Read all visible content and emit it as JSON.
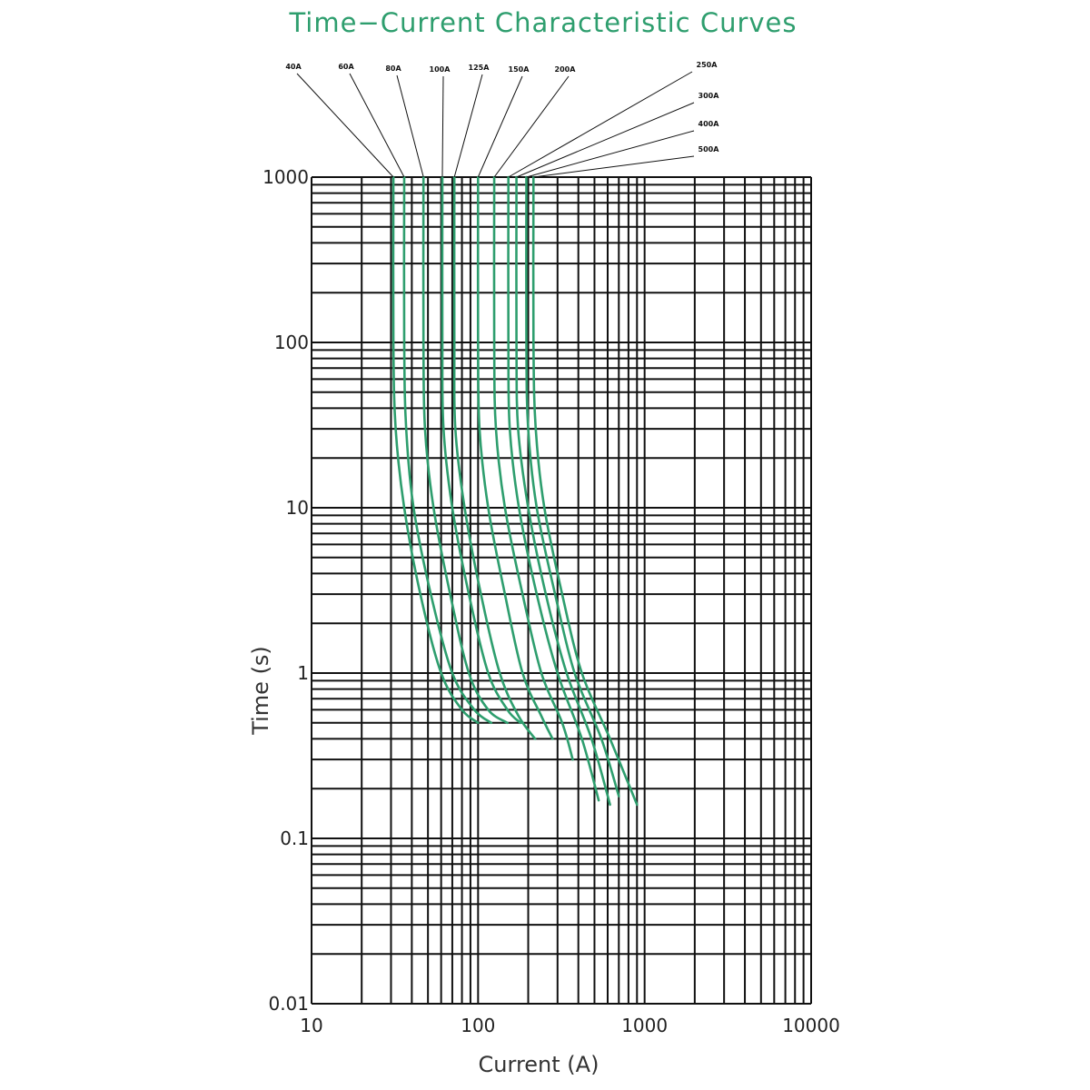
{
  "chart_data": {
    "type": "line",
    "title": "Time−Current Characteristic Curves",
    "xlabel": "Current (A)",
    "ylabel": "Time (s)",
    "x_scale": "log",
    "y_scale": "log",
    "xlim": [
      10,
      10000
    ],
    "ylim": [
      0.01,
      1000
    ],
    "grid": true,
    "x_ticks": [
      {
        "value": 10,
        "label": "10"
      },
      {
        "value": 100,
        "label": "100"
      },
      {
        "value": 1000,
        "label": "1000"
      },
      {
        "value": 10000,
        "label": "10000"
      }
    ],
    "y_ticks": [
      {
        "value": 1000,
        "label": "1000"
      },
      {
        "value": 100,
        "label": "100"
      },
      {
        "value": 10,
        "label": "10"
      },
      {
        "value": 1,
        "label": "1"
      },
      {
        "value": 0.1,
        "label": "0.1"
      },
      {
        "value": 0.01,
        "label": "0.01"
      }
    ],
    "colors": {
      "curve": "#2e9e6e",
      "title": "#2e9e6e",
      "grid": "#111111"
    },
    "series": [
      {
        "name": "40A",
        "x": [
          31,
          31,
          32,
          36,
          45,
          60,
          80,
          100
        ],
        "y": [
          1000,
          100,
          30,
          10,
          3,
          1,
          0.6,
          0.5
        ]
      },
      {
        "name": "60A",
        "x": [
          36,
          36,
          37,
          41,
          52,
          70,
          95,
          120
        ],
        "y": [
          1000,
          100,
          30,
          10,
          3,
          1,
          0.6,
          0.5
        ]
      },
      {
        "name": "80A",
        "x": [
          47,
          47,
          48,
          54,
          68,
          88,
          115,
          150
        ],
        "y": [
          1000,
          100,
          30,
          10,
          3,
          1,
          0.6,
          0.5
        ]
      },
      {
        "name": "100A",
        "x": [
          61,
          61,
          62,
          70,
          88,
          115,
          150,
          180
        ],
        "y": [
          1000,
          100,
          30,
          10,
          3,
          1,
          0.6,
          0.5
        ]
      },
      {
        "name": "125A",
        "x": [
          72,
          72,
          73,
          83,
          104,
          135,
          175,
          220
        ],
        "y": [
          1000,
          100,
          30,
          10,
          3,
          1,
          0.55,
          0.4
        ]
      },
      {
        "name": "150A",
        "x": [
          100,
          100,
          102,
          115,
          145,
          185,
          240,
          280
        ],
        "y": [
          1000,
          100,
          30,
          10,
          3,
          1,
          0.55,
          0.4
        ]
      },
      {
        "name": "200A",
        "x": [
          125,
          125,
          128,
          145,
          185,
          240,
          320,
          370
        ],
        "y": [
          1000,
          100,
          30,
          10,
          3,
          1,
          0.5,
          0.3
        ]
      },
      {
        "name": "250A",
        "x": [
          152,
          152,
          155,
          176,
          225,
          300,
          420,
          530
        ],
        "y": [
          1000,
          100,
          30,
          10,
          3,
          1,
          0.4,
          0.17
        ]
      },
      {
        "name": "300A",
        "x": [
          170,
          170,
          174,
          200,
          255,
          340,
          480,
          620
        ],
        "y": [
          1000,
          100,
          30,
          10,
          3,
          1,
          0.4,
          0.16
        ]
      },
      {
        "name": "400A",
        "x": [
          195,
          195,
          200,
          225,
          290,
          380,
          550,
          700
        ],
        "y": [
          1000,
          100,
          30,
          10,
          3,
          1,
          0.4,
          0.18
        ]
      },
      {
        "name": "500A",
        "x": [
          215,
          215,
          222,
          250,
          320,
          420,
          620,
          900
        ],
        "y": [
          1000,
          100,
          30,
          10,
          3,
          1,
          0.4,
          0.16
        ]
      }
    ]
  }
}
